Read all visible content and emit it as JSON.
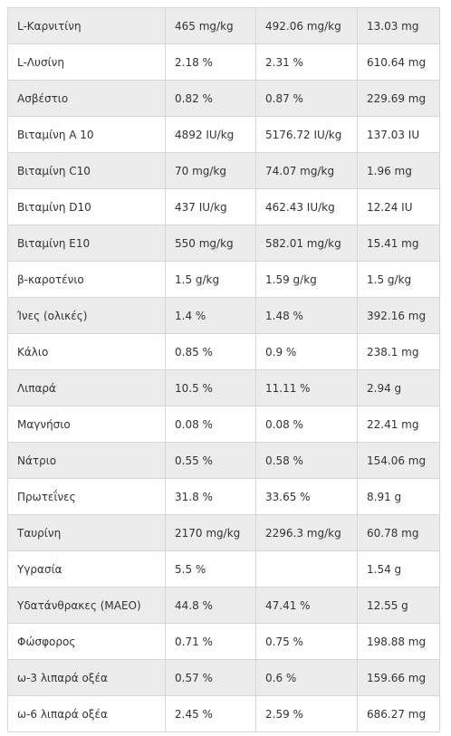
{
  "table": {
    "rows": [
      [
        "L-Καρνιτίνη",
        "465 mg/kg",
        "492.06 mg/kg",
        "13.03 mg"
      ],
      [
        "L-Λυσίνη",
        "2.18 %",
        "2.31 %",
        "610.64 mg"
      ],
      [
        "Ασβέστιο",
        "0.82 %",
        "0.87 %",
        "229.69 mg"
      ],
      [
        "Βιταμίνη A 10",
        "4892 IU/kg",
        "5176.72 IU/kg",
        "137.03 IU"
      ],
      [
        "Βιταμίνη C10",
        "70 mg/kg",
        "74.07 mg/kg",
        "1.96 mg"
      ],
      [
        "Βιταμίνη D10",
        "437 IU/kg",
        "462.43 IU/kg",
        "12.24 IU"
      ],
      [
        "Βιταμίνη E10",
        "550 mg/kg",
        "582.01 mg/kg",
        "15.41 mg"
      ],
      [
        "β-καροτένιο",
        "1.5 g/kg",
        "1.59 g/kg",
        "1.5 g/kg"
      ],
      [
        "Ίνες (ολικές)",
        "1.4 %",
        "1.48 %",
        "392.16 mg"
      ],
      [
        "Κάλιο",
        "0.85 %",
        "0.9 %",
        "238.1 mg"
      ],
      [
        "Λιπαρά",
        "10.5 %",
        "11.11 %",
        "2.94 g"
      ],
      [
        "Μαγνήσιο",
        "0.08 %",
        "0.08 %",
        "22.41 mg"
      ],
      [
        "Νάτριο",
        "0.55 %",
        "0.58 %",
        "154.06 mg"
      ],
      [
        "Πρωτεΐνες",
        "31.8 %",
        "33.65 %",
        "8.91 g"
      ],
      [
        "Ταυρίνη",
        "2170 mg/kg",
        "2296.3 mg/kg",
        "60.78 mg"
      ],
      [
        "Υγρασία",
        "5.5 %",
        "",
        "1.54 g"
      ],
      [
        "Υδατάνθρακες (ΜΑΕΟ)",
        "44.8 %",
        "47.41 %",
        "12.55 g"
      ],
      [
        "Φώσφορος",
        "0.71 %",
        "0.75 %",
        "198.88 mg"
      ],
      [
        "ω-3 λιπαρά οξέα",
        "0.57 %",
        "0.6 %",
        "159.66 mg"
      ],
      [
        "ω-6 λιπαρά οξέα",
        "2.45 %",
        "2.59 %",
        "686.27 mg"
      ]
    ]
  }
}
